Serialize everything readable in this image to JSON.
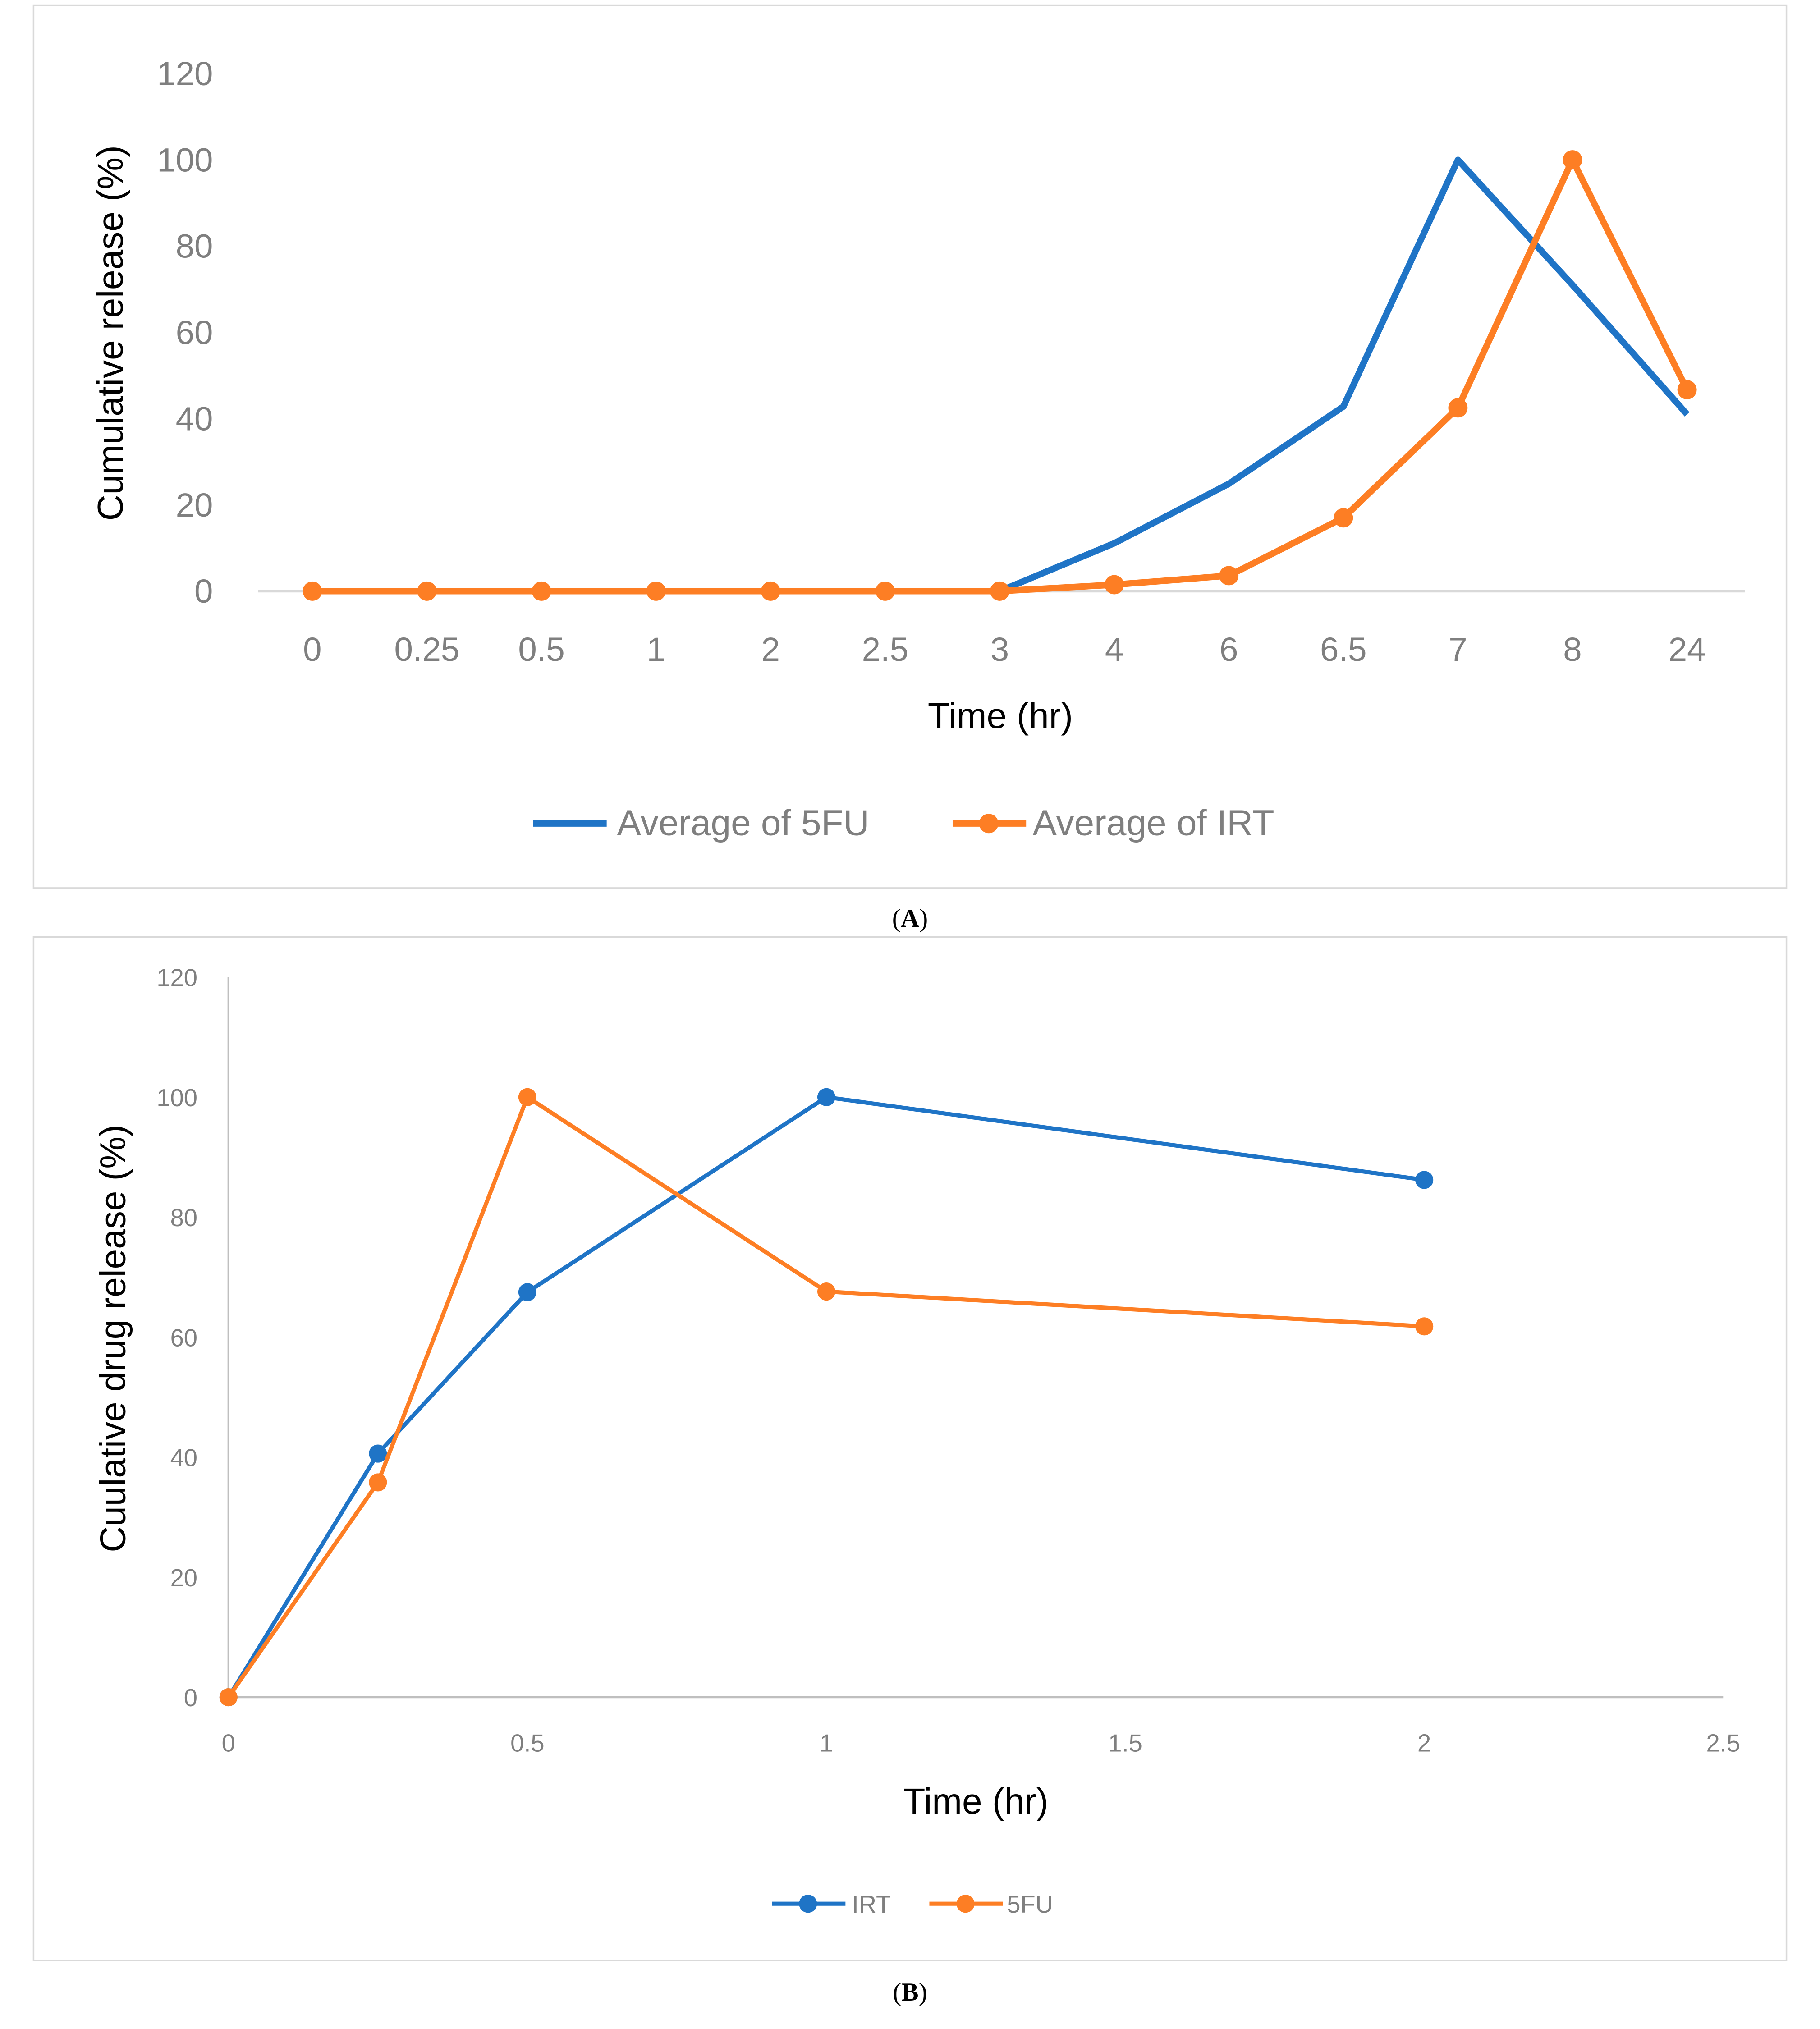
{
  "chart_data": [
    {
      "type": "line",
      "panel_label": "(A)",
      "caption_letter": "A",
      "xlabel": "Time (hr)",
      "ylabel": "Cumulative release (%)",
      "categories": [
        "0",
        "0.25",
        "0.5",
        "1",
        "2",
        "2.5",
        "3",
        "4",
        "6",
        "6.5",
        "7",
        "8",
        "24"
      ],
      "ylim": [
        0,
        120
      ],
      "yticks": [
        0,
        20,
        40,
        60,
        80,
        100,
        120
      ],
      "grid": false,
      "legend_position": "bottom",
      "series": [
        {
          "name": "Average of 5FU",
          "color": "#1f74c6",
          "markers": false,
          "values": [
            0,
            0,
            0,
            0,
            0,
            0,
            0,
            11.1,
            24.9,
            42.8,
            100,
            71,
            41
          ]
        },
        {
          "name": "Average of IRT",
          "color": "#fd7e24",
          "markers": true,
          "values": [
            0,
            0,
            0,
            0,
            0,
            0,
            0,
            1.5,
            3.6,
            17,
            42.5,
            100,
            46.7
          ]
        }
      ]
    },
    {
      "type": "line",
      "panel_label": "(B)",
      "caption_letter": "B",
      "xlabel": "Time (hr)",
      "ylabel": "Cuulative drug release (%)",
      "xlim": [
        0,
        2.5
      ],
      "xticks": [
        0,
        0.5,
        1,
        1.5,
        2,
        2.5
      ],
      "ylim": [
        0,
        120
      ],
      "yticks": [
        0,
        20,
        40,
        60,
        80,
        100,
        120
      ],
      "grid": false,
      "legend_position": "bottom",
      "x": [
        0,
        0.25,
        0.5,
        1,
        2
      ],
      "series": [
        {
          "name": "IRT",
          "color": "#1f74c6",
          "markers": true,
          "values": [
            0,
            40.6,
            67.5,
            100,
            86.2
          ]
        },
        {
          "name": "5FU",
          "color": "#fd7e24",
          "markers": true,
          "values": [
            0,
            35.8,
            100,
            67.6,
            61.8
          ]
        }
      ]
    }
  ]
}
